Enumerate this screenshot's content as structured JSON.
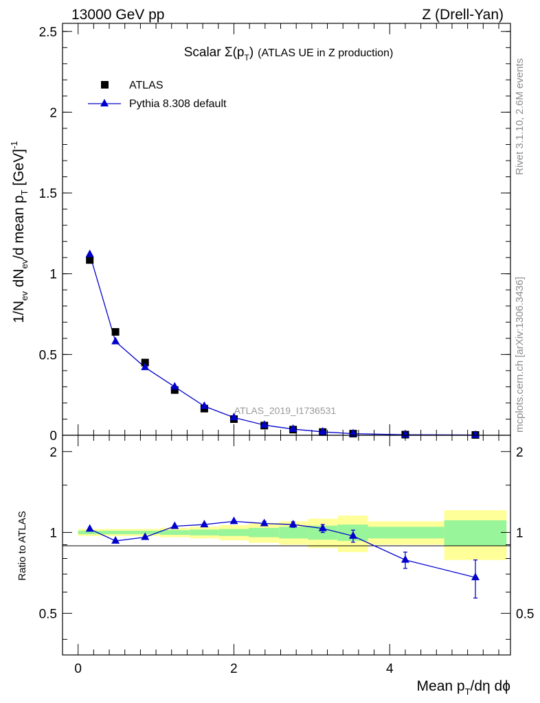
{
  "header": {
    "energy": "13000 GeV pp",
    "process": "Z (Drell-Yan)"
  },
  "side_labels": {
    "rivet": "Rivet 3.1.10,  2.6M events",
    "mcplots": "mcplots.cern.ch [arXiv:1306.3436]"
  },
  "chart_data": [
    {
      "type": "scatter",
      "panel": "main",
      "title": "Scalar Σ(pT) (ATLAS UE in Z production)",
      "title_parts": {
        "scalar": "Scalar ",
        "sigma": "Σ(p",
        "sub": "T",
        "close": ")",
        "rest": "(ATLAS UE in Z production)"
      },
      "watermark": "ATLAS_2019_I1736531",
      "ylabel": "1/Nev dNev/d mean pT [GeV]-1",
      "ylabel_parts": {
        "a": "1/N",
        "b": "ev",
        "c": " dN",
        "d": "ev",
        "e": "/d mean p",
        "f": "T",
        "g": " [GeV]",
        "h": "-1"
      },
      "xlim": [
        -0.2,
        5.55
      ],
      "ylim": [
        0,
        2.55
      ],
      "yticks": [
        0,
        0.5,
        1,
        1.5,
        2,
        2.5
      ],
      "ytick_labels": [
        "0",
        "0.5",
        "1",
        "1.5",
        "2",
        "2.5"
      ],
      "legend": {
        "position": "top-left",
        "entries": [
          {
            "label": "ATLAS",
            "marker": "square",
            "color": "#000000"
          },
          {
            "label": "Pythia 8.308 default",
            "marker": "triangle",
            "color": "#0000cc"
          }
        ]
      },
      "series": [
        {
          "name": "ATLAS",
          "x": [
            0.15,
            0.48,
            0.86,
            1.24,
            1.62,
            2.0,
            2.39,
            2.76,
            3.14,
            3.53,
            4.2,
            5.1
          ],
          "y": [
            1.085,
            0.64,
            0.45,
            0.28,
            0.165,
            0.1,
            0.06,
            0.035,
            0.02,
            0.01,
            0.004,
            0.002
          ]
        },
        {
          "name": "Pythia 8.308 default",
          "x": [
            0.15,
            0.48,
            0.86,
            1.24,
            1.62,
            2.0,
            2.39,
            2.76,
            3.14,
            3.53,
            4.2,
            5.1
          ],
          "y": [
            1.12,
            0.58,
            0.42,
            0.3,
            0.18,
            0.11,
            0.063,
            0.038,
            0.021,
            0.01,
            0.003,
            0.0015
          ]
        }
      ]
    },
    {
      "type": "line",
      "panel": "ratio",
      "ylabel": "Ratio to ATLAS",
      "xlabel": "Mean pT/dη dϕ",
      "xlabel_parts": {
        "a": "Mean p",
        "b": "T",
        "c": "/dη dϕ"
      },
      "xlim": [
        -0.2,
        5.55
      ],
      "ylim": [
        0.35,
        2.3
      ],
      "xticks": [
        0,
        2,
        4
      ],
      "xtick_labels": [
        "0",
        "2",
        "4"
      ],
      "yticks": [
        0.5,
        1,
        2
      ],
      "ytick_labels": [
        "0.5",
        "1",
        "2"
      ],
      "bin_edges": [
        0.0,
        0.3,
        0.67,
        1.05,
        1.43,
        1.81,
        2.19,
        2.58,
        2.95,
        3.33,
        3.72,
        4.7,
        5.5
      ],
      "band_inner": [
        0.015,
        0.015,
        0.015,
        0.02,
        0.025,
        0.03,
        0.04,
        0.05,
        0.06,
        0.07,
        0.05,
        0.11
      ],
      "band_outer": [
        0.03,
        0.03,
        0.03,
        0.04,
        0.05,
        0.065,
        0.085,
        0.1,
        0.125,
        0.155,
        0.1,
        0.21
      ],
      "series": [
        {
          "name": "Pythia 8.308 default",
          "x": [
            0.15,
            0.48,
            0.86,
            1.24,
            1.62,
            2.0,
            2.39,
            2.76,
            3.14,
            3.53,
            4.2,
            5.1
          ],
          "y": [
            1.03,
            0.93,
            0.96,
            1.055,
            1.07,
            1.1,
            1.08,
            1.07,
            1.035,
            0.97,
            0.79,
            0.68
          ],
          "yerr": [
            0.005,
            0.005,
            0.005,
            0.008,
            0.01,
            0.012,
            0.02,
            0.025,
            0.035,
            0.05,
            0.055,
            0.11
          ]
        }
      ]
    }
  ]
}
